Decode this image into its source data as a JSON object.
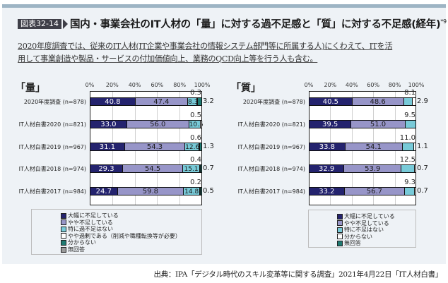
{
  "header": {
    "badge": "図表32-14",
    "title": "国内・事業会社のIT人材の「量」に対する過不足感と「質」に対する不足感(経年)",
    "footnote_mark": "*9"
  },
  "note": {
    "line1": "2020年度調査では、従来のIT人材(IT企業や事業会社の情報システム部門等に所属する人)にくわえて、ITを活",
    "line2": "用して事業創造や製品・サービスの付加価値向上、業務のQCD向上等を行う人も含む。"
  },
  "source": "出典：IPA「デジタル時代のスキル変革等に関する調査」2021年4月22日「IT人材白書」",
  "colors": {
    "very_short": "#24236e",
    "somewhat_short": "#9795c8",
    "no_issue": "#78cad8",
    "excess": "#ffffff",
    "unknown": "#1f7a72",
    "no_answer": "#9a9a9a"
  },
  "chart_data": [
    {
      "type": "bar",
      "orientation": "horizontal",
      "stacked": true,
      "title": "「量」",
      "xlabel": "",
      "ylabel": "",
      "xlim": [
        0,
        100
      ],
      "x_ticks": [
        "0%",
        "20%",
        "40%",
        "60%",
        "80%",
        "100%"
      ],
      "grid": true,
      "legend_position": "bottom",
      "categories": [
        "2020年度調査 (n=878)",
        "IT人材白書2020 (n=821)",
        "IT人材白書2019 (n=967)",
        "IT人材白書2018 (n=974)",
        "IT人材白書2017 (n=984)"
      ],
      "series": [
        {
          "name": "大幅に不足している",
          "values": [
            40.8,
            33.0,
            31.1,
            29.3,
            24.7
          ]
        },
        {
          "name": "やや不足している",
          "values": [
            47.4,
            56.0,
            54.3,
            54.5,
            59.8
          ]
        },
        {
          "name": "特に過不足はない",
          "values": [
            8.3,
            10.5,
            12.6,
            15.1,
            14.8
          ]
        },
        {
          "name": "やや過剰である（削減や職種転換等が必要）",
          "values": [
            0.3,
            0.5,
            0.6,
            0.4,
            0.2
          ]
        },
        {
          "name": "分からない",
          "values": [
            3.2,
            null,
            1.3,
            0.7,
            0.5
          ]
        },
        {
          "name": "無回答",
          "values": [
            null,
            null,
            null,
            null,
            null
          ]
        }
      ]
    },
    {
      "type": "bar",
      "orientation": "horizontal",
      "stacked": true,
      "title": "「質」",
      "xlabel": "",
      "ylabel": "",
      "xlim": [
        0,
        100
      ],
      "x_ticks": [
        "0%",
        "20%",
        "40%",
        "60%",
        "80%",
        "100%"
      ],
      "grid": true,
      "legend_position": "bottom",
      "categories": [
        "2020年度調査 (n=878)",
        "IT人材白書2020 (n=821)",
        "IT人材白書2019 (n=967)",
        "IT人材白書2018 (n=974)",
        "IT人材白書2017 (n=984)"
      ],
      "series": [
        {
          "name": "大幅に不足している",
          "values": [
            40.5,
            39.5,
            33.8,
            32.9,
            33.2
          ]
        },
        {
          "name": "やや不足している",
          "values": [
            48.6,
            51.0,
            54.1,
            53.9,
            56.7
          ]
        },
        {
          "name": "特に不足はない",
          "values": [
            8.1,
            9.5,
            11.0,
            12.5,
            9.3
          ]
        },
        {
          "name": "分からない",
          "values": [
            2.9,
            null,
            1.1,
            0.7,
            0.7
          ]
        },
        {
          "name": "無回答",
          "values": [
            null,
            null,
            null,
            null,
            null
          ]
        }
      ]
    }
  ],
  "left_chart": {
    "heading": "「量」",
    "ticks": [
      "0%",
      "20%",
      "40%",
      "60%",
      "80%",
      "100%"
    ],
    "rows": [
      {
        "label": "2020年度調査 (n=878)",
        "v1": "40.8",
        "v2": "47.4",
        "v3": "8.3",
        "above": "0.3",
        "right": "3.2"
      },
      {
        "label": "IT人材白書2020 (n=821)",
        "v1": "33.0",
        "v2": "56.0",
        "v3": "10.5",
        "above": "0.5",
        "right": ""
      },
      {
        "label": "IT人材白書2019 (n=967)",
        "v1": "31.1",
        "v2": "54.3",
        "v3": "12.6",
        "above": "0.6",
        "right": "1.3"
      },
      {
        "label": "IT人材白書2018 (n=974)",
        "v1": "29.3",
        "v2": "54.5",
        "v3": "15.1",
        "above": "0.4",
        "right": "0.7"
      },
      {
        "label": "IT人材白書2017 (n=984)",
        "v1": "24.7",
        "v2": "59.8",
        "v3": "14.8",
        "above": "0.2",
        "right": "0.5"
      }
    ],
    "legend": [
      "大幅に不足している",
      "やや不足している",
      "特に過不足はない",
      "やや過剰である（削減や職種転換等が必要）",
      "分からない",
      "無回答"
    ]
  },
  "right_chart": {
    "heading": "「質」",
    "ticks": [
      "0%",
      "20%",
      "40%",
      "60%",
      "80%",
      "100%"
    ],
    "rows": [
      {
        "label": "2020年度調査 (n=878)",
        "v1": "40.5",
        "v2": "48.6",
        "above": "8.1",
        "right": "2.9"
      },
      {
        "label": "IT人材白書2020 (n=821)",
        "v1": "39.5",
        "v2": "51.0",
        "above": "9.5",
        "right": ""
      },
      {
        "label": "IT人材白書2019 (n=967)",
        "v1": "33.8",
        "v2": "54.1",
        "above": "11.0",
        "right": "1.1"
      },
      {
        "label": "IT人材白書2018 (n=974)",
        "v1": "32.9",
        "v2": "53.9",
        "above": "12.5",
        "right": "0.7"
      },
      {
        "label": "IT人材白書2017 (n=984)",
        "v1": "33.2",
        "v2": "56.7",
        "above": "9.3",
        "right": "0.7"
      }
    ],
    "legend": [
      "大幅に不足している",
      "やや不足している",
      "特に不足はない",
      "分からない",
      "無回答"
    ]
  }
}
